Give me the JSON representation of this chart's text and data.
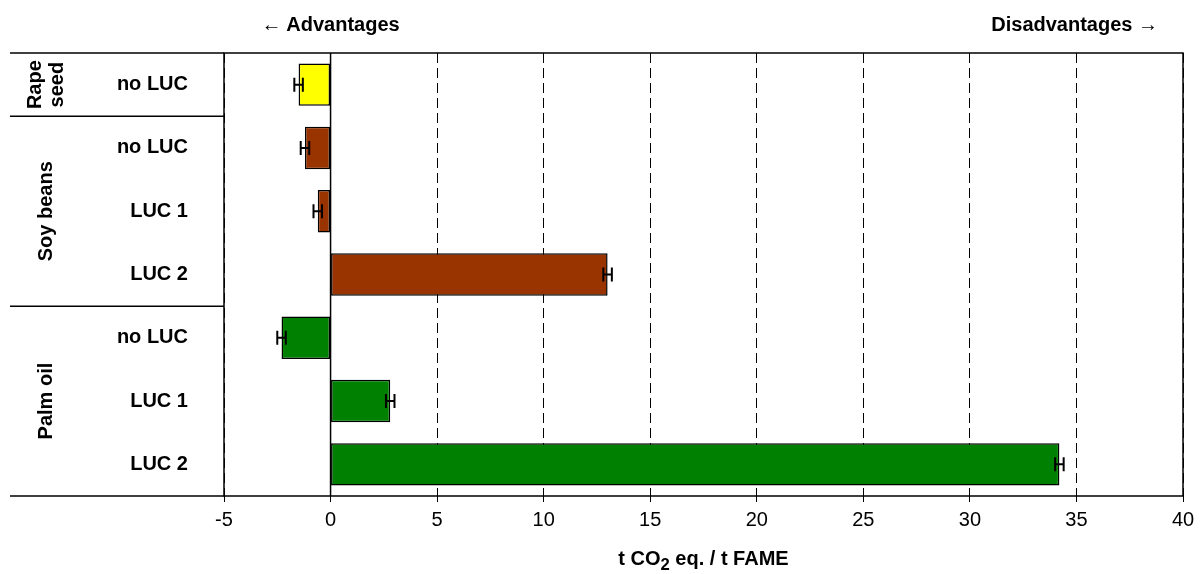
{
  "chart_data": {
    "type": "bar",
    "orientation": "horizontal",
    "xlabel": "t CO$_{2}$ eq. / t FAME",
    "categories": [
      "no LUC",
      "no LUC",
      "LUC 1",
      "LUC 2",
      "no LUC",
      "LUC 1",
      "LUC 2"
    ],
    "values": [
      -1.5,
      -1.2,
      -0.6,
      13.0,
      -2.3,
      2.8,
      34.2
    ],
    "errors": [
      0.2,
      0.2,
      0.2,
      0.2,
      0.2,
      0.2,
      0.2
    ],
    "colors": [
      "#ffff00",
      "#993300",
      "#993300",
      "#993300",
      "#008000",
      "#008000",
      "#008000"
    ],
    "xlim": [
      -5,
      40
    ],
    "xticks": [
      -5,
      0,
      5,
      10,
      15,
      20,
      25,
      30,
      35,
      40
    ],
    "grid": "x",
    "legend": false,
    "annotations": [
      "← Advantages",
      "Disadvantages →",
      "Rape seed",
      "Soy beans",
      "Palm oil"
    ]
  }
}
